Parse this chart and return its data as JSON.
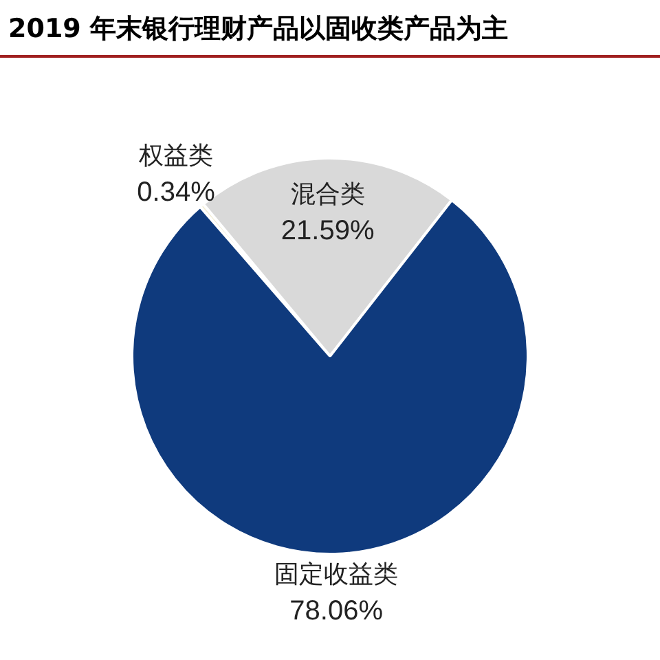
{
  "chart_data": {
    "type": "pie",
    "title": "2019 年末银行理财产品以固收类产品为主",
    "categories": [
      "权益类",
      "混合类",
      "固定收益类"
    ],
    "values": [
      0.34,
      21.59,
      78.06
    ],
    "colors": [
      "#f3eed6",
      "#d9d9d9",
      "#0f3a7d"
    ],
    "value_labels": [
      "0.34%",
      "21.59%",
      "78.06%"
    ],
    "legend": false
  }
}
